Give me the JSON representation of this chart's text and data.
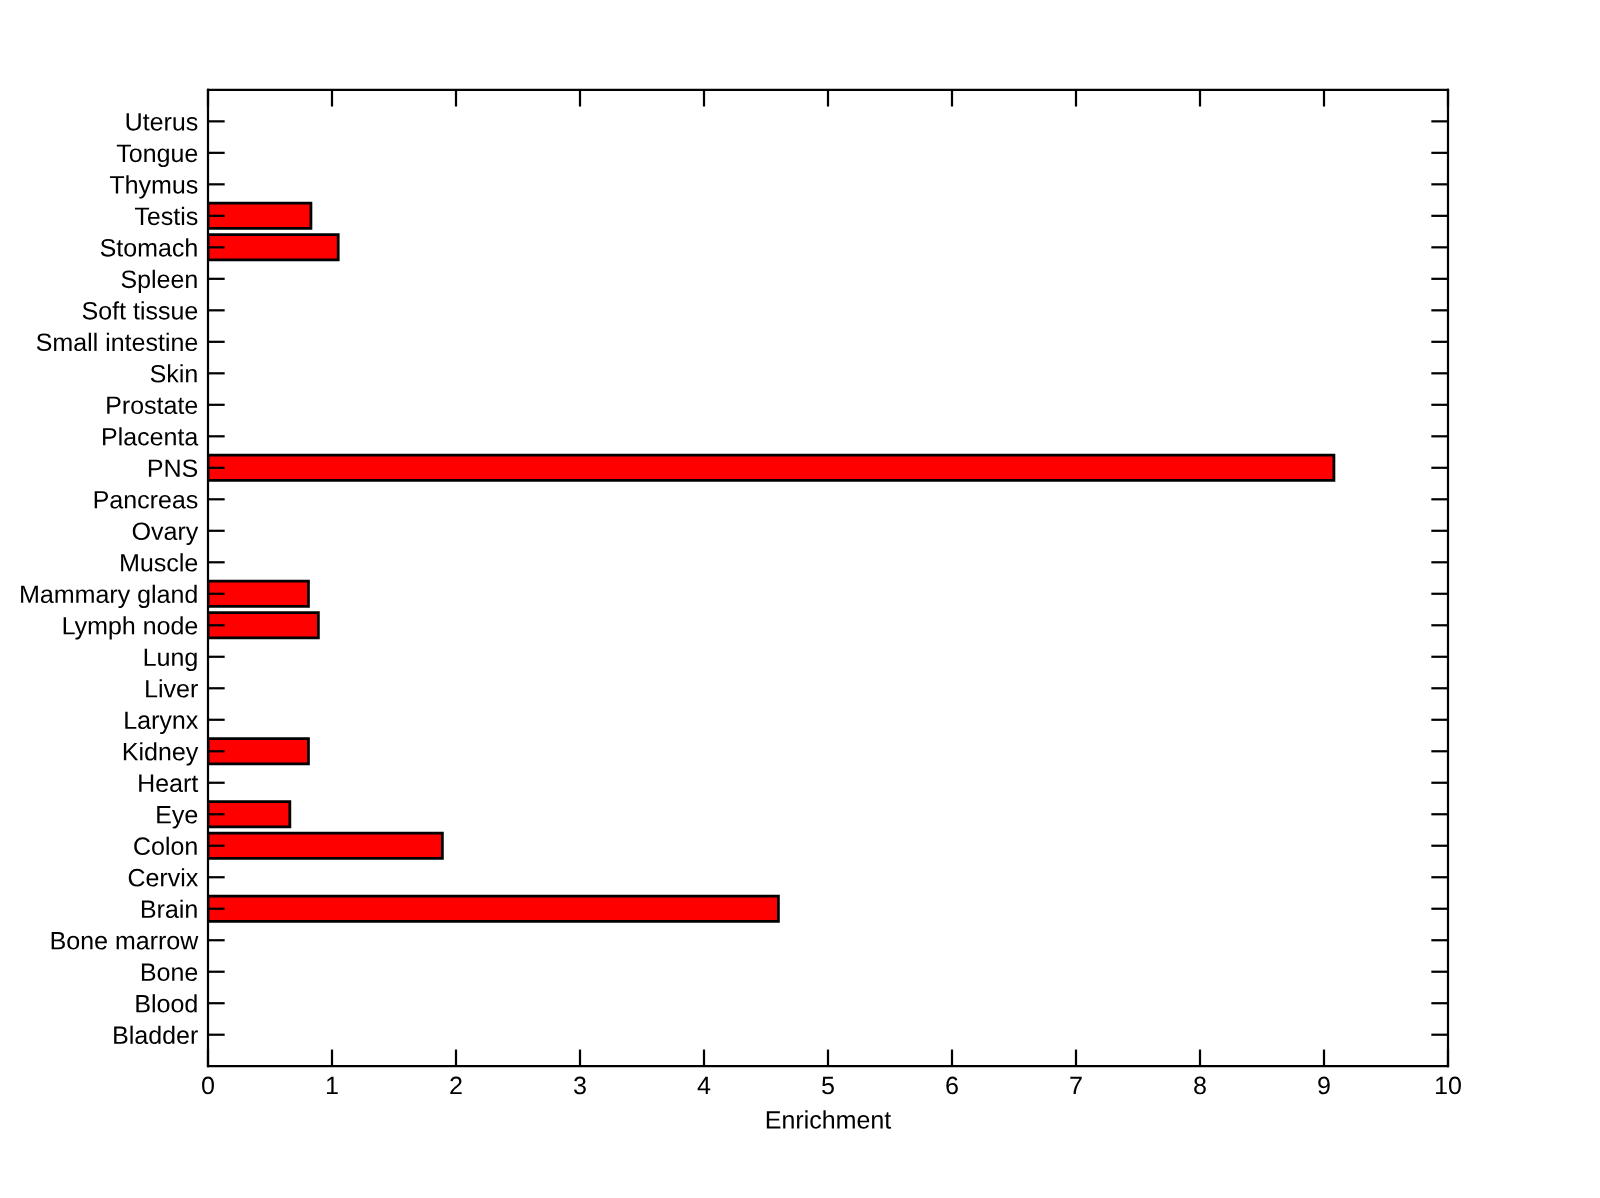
{
  "chart_data": {
    "type": "bar",
    "orientation": "horizontal",
    "xlabel": "Enrichment",
    "categories": [
      "Uterus",
      "Tongue",
      "Thymus",
      "Testis",
      "Stomach",
      "Spleen",
      "Soft tissue",
      "Small intestine",
      "Skin",
      "Prostate",
      "Placenta",
      "PNS",
      "Pancreas",
      "Ovary",
      "Muscle",
      "Mammary gland",
      "Lymph node",
      "Lung",
      "Liver",
      "Larynx",
      "Kidney",
      "Heart",
      "Eye",
      "Colon",
      "Cervix",
      "Brain",
      "Bone marrow",
      "Bone",
      "Blood",
      "Bladder"
    ],
    "values": [
      0,
      0,
      0,
      0.83,
      1.05,
      0,
      0,
      0,
      0,
      0,
      0,
      9.08,
      0,
      0,
      0,
      0.81,
      0.89,
      0,
      0,
      0,
      0.81,
      0,
      0.66,
      1.89,
      0,
      4.6,
      0,
      0,
      0,
      0
    ],
    "color": "#ff0000",
    "xlim": [
      0,
      10
    ],
    "xticks": [
      0,
      1,
      2,
      3,
      4,
      5,
      6,
      7,
      8,
      9,
      10
    ],
    "grid": false,
    "legend": false
  }
}
